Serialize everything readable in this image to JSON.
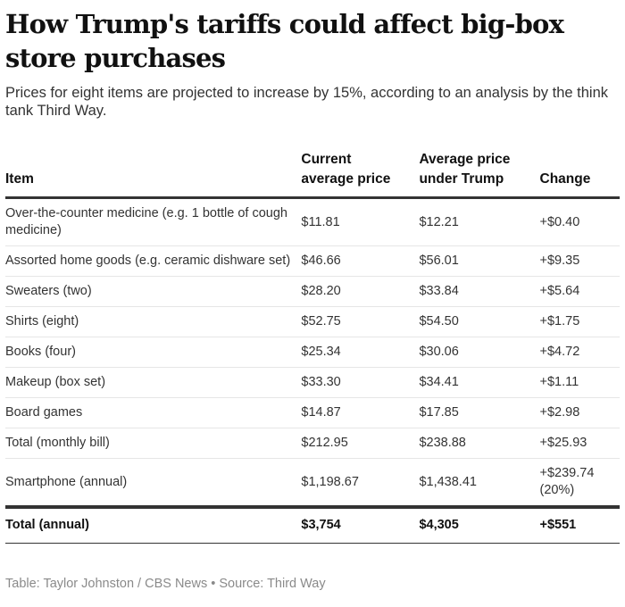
{
  "title": "How Trump's tariffs could affect big-box store purchases",
  "subtitle": "Prices for eight items are projected to increase by 15%, according to an analysis by the think tank Third Way.",
  "chart_data": {
    "type": "table",
    "columns": [
      "Item",
      "Current average price",
      "Average price under Trump",
      "Change"
    ],
    "rows": [
      [
        "Over-the-counter medicine (e.g. 1 bottle of cough medicine)",
        "$11.81",
        "$12.21",
        "+$0.40"
      ],
      [
        "Assorted home goods (e.g. ceramic dishware set)",
        "$46.66",
        "$56.01",
        "+$9.35"
      ],
      [
        "Sweaters (two)",
        "$28.20",
        "$33.84",
        "+$5.64"
      ],
      [
        "Shirts (eight)",
        "$52.75",
        "$54.50",
        "+$1.75"
      ],
      [
        "Books (four)",
        "$25.34",
        "$30.06",
        "+$4.72"
      ],
      [
        "Makeup (box set)",
        "$33.30",
        "$34.41",
        "+$1.11"
      ],
      [
        "Board games",
        "$14.87",
        "$17.85",
        "+$2.98"
      ],
      [
        "Total (monthly bill)",
        "$212.95",
        "$238.88",
        "+$25.93"
      ],
      [
        "Smartphone (annual)",
        "$1,198.67",
        "$1,438.41",
        "+$239.74 (20%)"
      ]
    ],
    "total_row": [
      "Total (annual)",
      "$3,754",
      "$4,305",
      "+$551"
    ]
  },
  "footer": "Table: Taylor Johnston / CBS News • Source: Third Way"
}
